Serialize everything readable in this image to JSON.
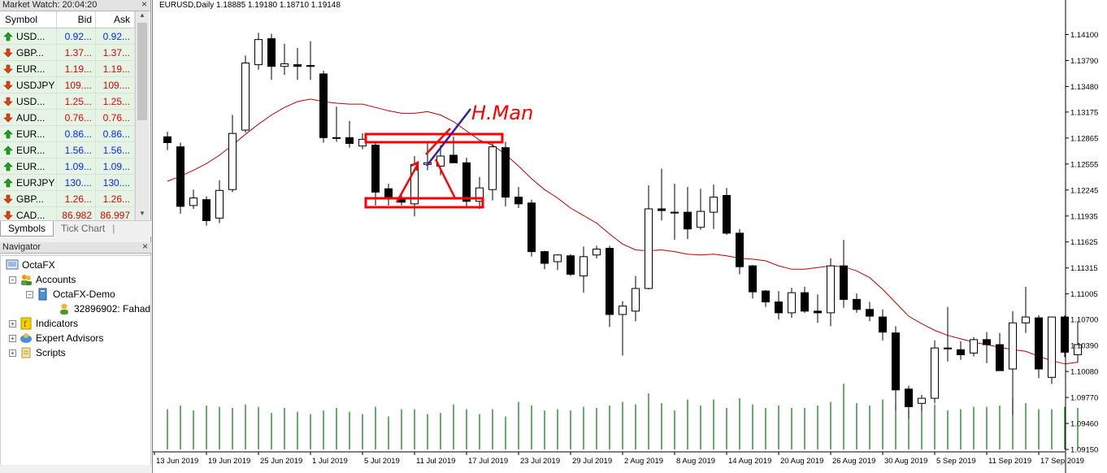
{
  "market_watch": {
    "title": "Market Watch: 20:04:20",
    "columns": {
      "symbol": "Symbol",
      "bid": "Bid",
      "ask": "Ask"
    },
    "rows": [
      {
        "symbol": "USD...",
        "bid": "0.92...",
        "ask": "0.92...",
        "dir": "up"
      },
      {
        "symbol": "GBP...",
        "bid": "1.37...",
        "ask": "1.37...",
        "dir": "down"
      },
      {
        "symbol": "EUR...",
        "bid": "1.19...",
        "ask": "1.19...",
        "dir": "down"
      },
      {
        "symbol": "USDJPY",
        "bid": "109....",
        "ask": "109....",
        "dir": "down"
      },
      {
        "symbol": "USD...",
        "bid": "1.25...",
        "ask": "1.25...",
        "dir": "down"
      },
      {
        "symbol": "AUD...",
        "bid": "0.76...",
        "ask": "0.76...",
        "dir": "down"
      },
      {
        "symbol": "EUR...",
        "bid": "0.86...",
        "ask": "0.86...",
        "dir": "up"
      },
      {
        "symbol": "EUR...",
        "bid": "1.56...",
        "ask": "1.56...",
        "dir": "up"
      },
      {
        "symbol": "EUR...",
        "bid": "1.09...",
        "ask": "1.09...",
        "dir": "up"
      },
      {
        "symbol": "EURJPY",
        "bid": "130....",
        "ask": "130....",
        "dir": "up"
      },
      {
        "symbol": "GBP...",
        "bid": "1.26...",
        "ask": "1.26...",
        "dir": "down"
      },
      {
        "symbol": "CAD...",
        "bid": "86.982",
        "ask": "86.997",
        "dir": "down"
      }
    ],
    "tabs": [
      "Symbols",
      "Tick Chart"
    ]
  },
  "navigator": {
    "title": "Navigator",
    "items": {
      "root": "OctaFX",
      "accounts": "Accounts",
      "demo": "OctaFX-Demo",
      "account": "32896902: Fahad",
      "indicators": "Indicators",
      "experts": "Expert Advisors",
      "scripts": "Scripts"
    }
  },
  "chart": {
    "title": "EURUSD,Daily  1.18885 1.19180 1.18710 1.19148",
    "annotation": "H.Man",
    "colors": {
      "ma": "#c00000",
      "volume": "#008000",
      "annotation": "#ff0000",
      "trendline": "#3c1e9c"
    }
  },
  "chart_data": {
    "type": "candlestick",
    "symbol": "EURUSD",
    "timeframe": "Daily",
    "ohlc_header": [
      1.18885,
      1.1918,
      1.1871,
      1.19148
    ],
    "price_ticks": [
      "1.14100",
      "1.13790",
      "1.13480",
      "1.13175",
      "1.12865",
      "1.12555",
      "1.12245",
      "1.11935",
      "1.11625",
      "1.11315",
      "1.11005",
      "1.10700",
      "1.10390",
      "1.10080",
      "1.09770",
      "1.09460",
      "1.09150"
    ],
    "date_ticks": [
      "13 Jun 2019",
      "19 Jun 2019",
      "25 Jun 2019",
      "1 Jul 2019",
      "5 Jul 2019",
      "11 Jul 2019",
      "17 Jul 2019",
      "23 Jul 2019",
      "29 Jul 2019",
      "2 Aug 2019",
      "8 Aug 2019",
      "14 Aug 2019",
      "20 Aug 2019",
      "26 Aug 2019",
      "30 Aug 2019",
      "5 Sep 2019",
      "11 Sep 2019",
      "17 Sep 2019"
    ],
    "ylim": [
      1.0915,
      1.1425
    ],
    "candles": [
      {
        "o": 1.1288,
        "h": 1.1294,
        "l": 1.1272,
        "c": 1.1281
      },
      {
        "o": 1.1276,
        "h": 1.1281,
        "l": 1.1196,
        "c": 1.1205
      },
      {
        "o": 1.1206,
        "h": 1.1225,
        "l": 1.1202,
        "c": 1.1215
      },
      {
        "o": 1.1213,
        "h": 1.1217,
        "l": 1.1182,
        "c": 1.1188
      },
      {
        "o": 1.1191,
        "h": 1.1236,
        "l": 1.1185,
        "c": 1.1224
      },
      {
        "o": 1.1225,
        "h": 1.1314,
        "l": 1.1222,
        "c": 1.1292
      },
      {
        "o": 1.1296,
        "h": 1.1385,
        "l": 1.1293,
        "c": 1.1376
      },
      {
        "o": 1.1374,
        "h": 1.1412,
        "l": 1.1368,
        "c": 1.1404
      },
      {
        "o": 1.1405,
        "h": 1.1411,
        "l": 1.1356,
        "c": 1.1372
      },
      {
        "o": 1.1372,
        "h": 1.1399,
        "l": 1.1362,
        "c": 1.1375
      },
      {
        "o": 1.1374,
        "h": 1.1394,
        "l": 1.1356,
        "c": 1.1372
      },
      {
        "o": 1.1373,
        "h": 1.1402,
        "l": 1.1356,
        "c": 1.1372
      },
      {
        "o": 1.1363,
        "h": 1.1367,
        "l": 1.1281,
        "c": 1.1287
      },
      {
        "o": 1.1287,
        "h": 1.1324,
        "l": 1.1282,
        "c": 1.1286
      },
      {
        "o": 1.1287,
        "h": 1.1307,
        "l": 1.1275,
        "c": 1.128
      },
      {
        "o": 1.1277,
        "h": 1.1292,
        "l": 1.1273,
        "c": 1.1285
      },
      {
        "o": 1.1278,
        "h": 1.1282,
        "l": 1.1206,
        "c": 1.1222
      },
      {
        "o": 1.1226,
        "h": 1.1232,
        "l": 1.1206,
        "c": 1.1215
      },
      {
        "o": 1.1214,
        "h": 1.1218,
        "l": 1.1206,
        "c": 1.121
      },
      {
        "o": 1.1208,
        "h": 1.1265,
        "l": 1.1193,
        "c": 1.1255
      },
      {
        "o": 1.1255,
        "h": 1.1283,
        "l": 1.1248,
        "c": 1.1257
      },
      {
        "o": 1.1253,
        "h": 1.1278,
        "l": 1.1242,
        "c": 1.1265
      },
      {
        "o": 1.1266,
        "h": 1.1288,
        "l": 1.1262,
        "c": 1.1257
      },
      {
        "o": 1.1257,
        "h": 1.1263,
        "l": 1.1205,
        "c": 1.1211
      },
      {
        "o": 1.1211,
        "h": 1.124,
        "l": 1.1202,
        "c": 1.1227
      },
      {
        "o": 1.1225,
        "h": 1.1282,
        "l": 1.1212,
        "c": 1.1276
      },
      {
        "o": 1.1275,
        "h": 1.1282,
        "l": 1.1205,
        "c": 1.1216
      },
      {
        "o": 1.1216,
        "h": 1.1228,
        "l": 1.1203,
        "c": 1.1208
      },
      {
        "o": 1.1209,
        "h": 1.1213,
        "l": 1.1145,
        "c": 1.1151
      },
      {
        "o": 1.1151,
        "h": 1.1152,
        "l": 1.113,
        "c": 1.1137
      },
      {
        "o": 1.1139,
        "h": 1.1148,
        "l": 1.1129,
        "c": 1.1147
      },
      {
        "o": 1.1146,
        "h": 1.1148,
        "l": 1.1122,
        "c": 1.1124
      },
      {
        "o": 1.1122,
        "h": 1.1157,
        "l": 1.1102,
        "c": 1.1145
      },
      {
        "o": 1.1147,
        "h": 1.1158,
        "l": 1.1143,
        "c": 1.1154
      },
      {
        "o": 1.1155,
        "h": 1.1158,
        "l": 1.1061,
        "c": 1.1076
      },
      {
        "o": 1.1076,
        "h": 1.1092,
        "l": 1.1027,
        "c": 1.1086
      },
      {
        "o": 1.108,
        "h": 1.1122,
        "l": 1.1068,
        "c": 1.1107
      },
      {
        "o": 1.1107,
        "h": 1.123,
        "l": 1.1106,
        "c": 1.1202
      },
      {
        "o": 1.1202,
        "h": 1.125,
        "l": 1.1188,
        "c": 1.12
      },
      {
        "o": 1.1198,
        "h": 1.1232,
        "l": 1.1165,
        "c": 1.1198
      },
      {
        "o": 1.1198,
        "h": 1.1228,
        "l": 1.1166,
        "c": 1.1178
      },
      {
        "o": 1.118,
        "h": 1.1226,
        "l": 1.1177,
        "c": 1.1199
      },
      {
        "o": 1.1198,
        "h": 1.1231,
        "l": 1.1178,
        "c": 1.1216
      },
      {
        "o": 1.1218,
        "h": 1.1227,
        "l": 1.1171,
        "c": 1.1173
      },
      {
        "o": 1.1173,
        "h": 1.1178,
        "l": 1.1124,
        "c": 1.1133
      },
      {
        "o": 1.1134,
        "h": 1.1135,
        "l": 1.1095,
        "c": 1.1103
      },
      {
        "o": 1.1104,
        "h": 1.1105,
        "l": 1.1085,
        "c": 1.1091
      },
      {
        "o": 1.1091,
        "h": 1.1104,
        "l": 1.107,
        "c": 1.1078
      },
      {
        "o": 1.1078,
        "h": 1.1108,
        "l": 1.1072,
        "c": 1.1102
      },
      {
        "o": 1.1102,
        "h": 1.1109,
        "l": 1.1078,
        "c": 1.108
      },
      {
        "o": 1.108,
        "h": 1.11,
        "l": 1.1066,
        "c": 1.1078
      },
      {
        "o": 1.1078,
        "h": 1.1143,
        "l": 1.1062,
        "c": 1.1134
      },
      {
        "o": 1.1134,
        "h": 1.1165,
        "l": 1.1084,
        "c": 1.1094
      },
      {
        "o": 1.1094,
        "h": 1.1101,
        "l": 1.1078,
        "c": 1.1082
      },
      {
        "o": 1.1082,
        "h": 1.1091,
        "l": 1.1068,
        "c": 1.1074
      },
      {
        "o": 1.1073,
        "h": 1.1082,
        "l": 1.1045,
        "c": 1.1055
      },
      {
        "o": 1.1054,
        "h": 1.1062,
        "l": 1.0962,
        "c": 1.0986
      },
      {
        "o": 1.0987,
        "h": 1.0991,
        "l": 1.0952,
        "c": 1.0966
      },
      {
        "o": 1.097,
        "h": 1.098,
        "l": 1.0961,
        "c": 1.0976
      },
      {
        "o": 1.0976,
        "h": 1.1045,
        "l": 1.097,
        "c": 1.1036
      },
      {
        "o": 1.1036,
        "h": 1.1085,
        "l": 1.102,
        "c": 1.1035
      },
      {
        "o": 1.1034,
        "h": 1.1044,
        "l": 1.1022,
        "c": 1.1028
      },
      {
        "o": 1.103,
        "h": 1.1049,
        "l": 1.1026,
        "c": 1.1046
      },
      {
        "o": 1.1046,
        "h": 1.1055,
        "l": 1.1018,
        "c": 1.104
      },
      {
        "o": 1.104,
        "h": 1.1054,
        "l": 1.1012,
        "c": 1.1009
      },
      {
        "o": 1.1011,
        "h": 1.108,
        "l": 1.0956,
        "c": 1.1066
      },
      {
        "o": 1.1066,
        "h": 1.1109,
        "l": 1.1054,
        "c": 1.1073
      },
      {
        "o": 1.1072,
        "h": 1.1075,
        "l": 1.1,
        "c": 1.1011
      },
      {
        "o": 1.1001,
        "h": 1.1073,
        "l": 1.0993,
        "c": 1.1073
      },
      {
        "o": 1.1073,
        "h": 1.1075,
        "l": 1.1025,
        "c": 1.1031
      },
      {
        "o": 1.1028,
        "h": 1.1068,
        "l": 1.1019,
        "c": 1.104
      }
    ],
    "ma": [
      1.1235,
      1.1241,
      1.1248,
      1.1256,
      1.1266,
      1.1278,
      1.1291,
      1.1303,
      1.1314,
      1.1323,
      1.133,
      1.1333,
      1.133,
      1.1328,
      1.1327,
      1.1327,
      1.1323,
      1.1319,
      1.1316,
      1.1316,
      1.1318,
      1.1314,
      1.1306,
      1.1295,
      1.1284,
      1.1278,
      1.1267,
      1.1253,
      1.1238,
      1.1225,
      1.1215,
      1.1203,
      1.1194,
      1.1185,
      1.1172,
      1.116,
      1.1153,
      1.1152,
      1.1153,
      1.1151,
      1.1148,
      1.1147,
      1.1148,
      1.1146,
      1.1143,
      1.1142,
      1.114,
      1.1134,
      1.113,
      1.113,
      1.1132,
      1.1134,
      1.1133,
      1.1128,
      1.112,
      1.1106,
      1.109,
      1.1074,
      1.1065,
      1.1057,
      1.1051,
      1.1047,
      1.1043,
      1.104,
      1.1037,
      1.1034,
      1.1032,
      1.1026,
      1.1021,
      1.1017,
      1.1019
    ],
    "volume": [
      0.33,
      0.36,
      0.32,
      0.36,
      0.35,
      0.34,
      0.37,
      0.35,
      0.3,
      0.34,
      0.31,
      0.29,
      0.32,
      0.34,
      0.31,
      0.29,
      0.35,
      0.27,
      0.33,
      0.33,
      0.29,
      0.3,
      0.37,
      0.33,
      0.29,
      0.33,
      0.27,
      0.39,
      0.36,
      0.32,
      0.33,
      0.32,
      0.35,
      0.34,
      0.36,
      0.39,
      0.37,
      0.46,
      0.38,
      0.32,
      0.41,
      0.36,
      0.41,
      0.34,
      0.42,
      0.37,
      0.34,
      0.36,
      0.34,
      0.34,
      0.36,
      0.39,
      0.54,
      0.38,
      0.36,
      0.41,
      0.36,
      0.32,
      0.36,
      0.37,
      0.32,
      0.33,
      0.35,
      0.35,
      0.36,
      0.42,
      0.38,
      0.33,
      0.33,
      0.35,
      0.34
    ]
  }
}
